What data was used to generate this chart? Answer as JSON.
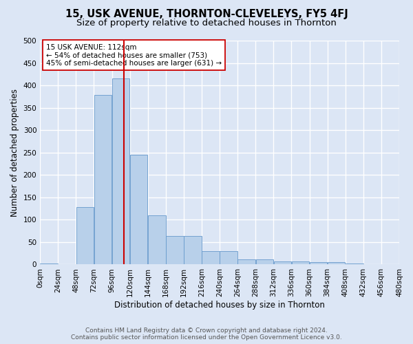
{
  "title": "15, USK AVENUE, THORNTON-CLEVELEYS, FY5 4FJ",
  "subtitle": "Size of property relative to detached houses in Thornton",
  "xlabel": "Distribution of detached houses by size in Thornton",
  "ylabel": "Number of detached properties",
  "bin_edges": [
    0,
    24,
    48,
    72,
    96,
    120,
    144,
    168,
    192,
    216,
    240,
    264,
    288,
    312,
    336,
    360,
    384,
    408,
    432,
    456,
    480
  ],
  "bar_heights": [
    2,
    0,
    128,
    378,
    415,
    245,
    110,
    63,
    63,
    30,
    30,
    12,
    12,
    7,
    7,
    5,
    5,
    2,
    0,
    0
  ],
  "bar_color": "#b8d0ea",
  "bar_edge_color": "#6699cc",
  "property_size": 112,
  "red_line_color": "#cc0000",
  "annotation_text": "15 USK AVENUE: 112sqm\n← 54% of detached houses are smaller (753)\n45% of semi-detached houses are larger (631) →",
  "annotation_box_color": "#ffffff",
  "annotation_box_edge_color": "#cc0000",
  "bg_color": "#dce6f5",
  "grid_color": "#ffffff",
  "footer_line1": "Contains HM Land Registry data © Crown copyright and database right 2024.",
  "footer_line2": "Contains public sector information licensed under the Open Government Licence v3.0.",
  "ylim": [
    0,
    500
  ],
  "xlim": [
    0,
    480
  ],
  "title_fontsize": 10.5,
  "subtitle_fontsize": 9.5,
  "tick_label_fontsize": 7.5,
  "ylabel_fontsize": 8.5,
  "xlabel_fontsize": 8.5,
  "annotation_fontsize": 7.5,
  "footer_fontsize": 6.5
}
